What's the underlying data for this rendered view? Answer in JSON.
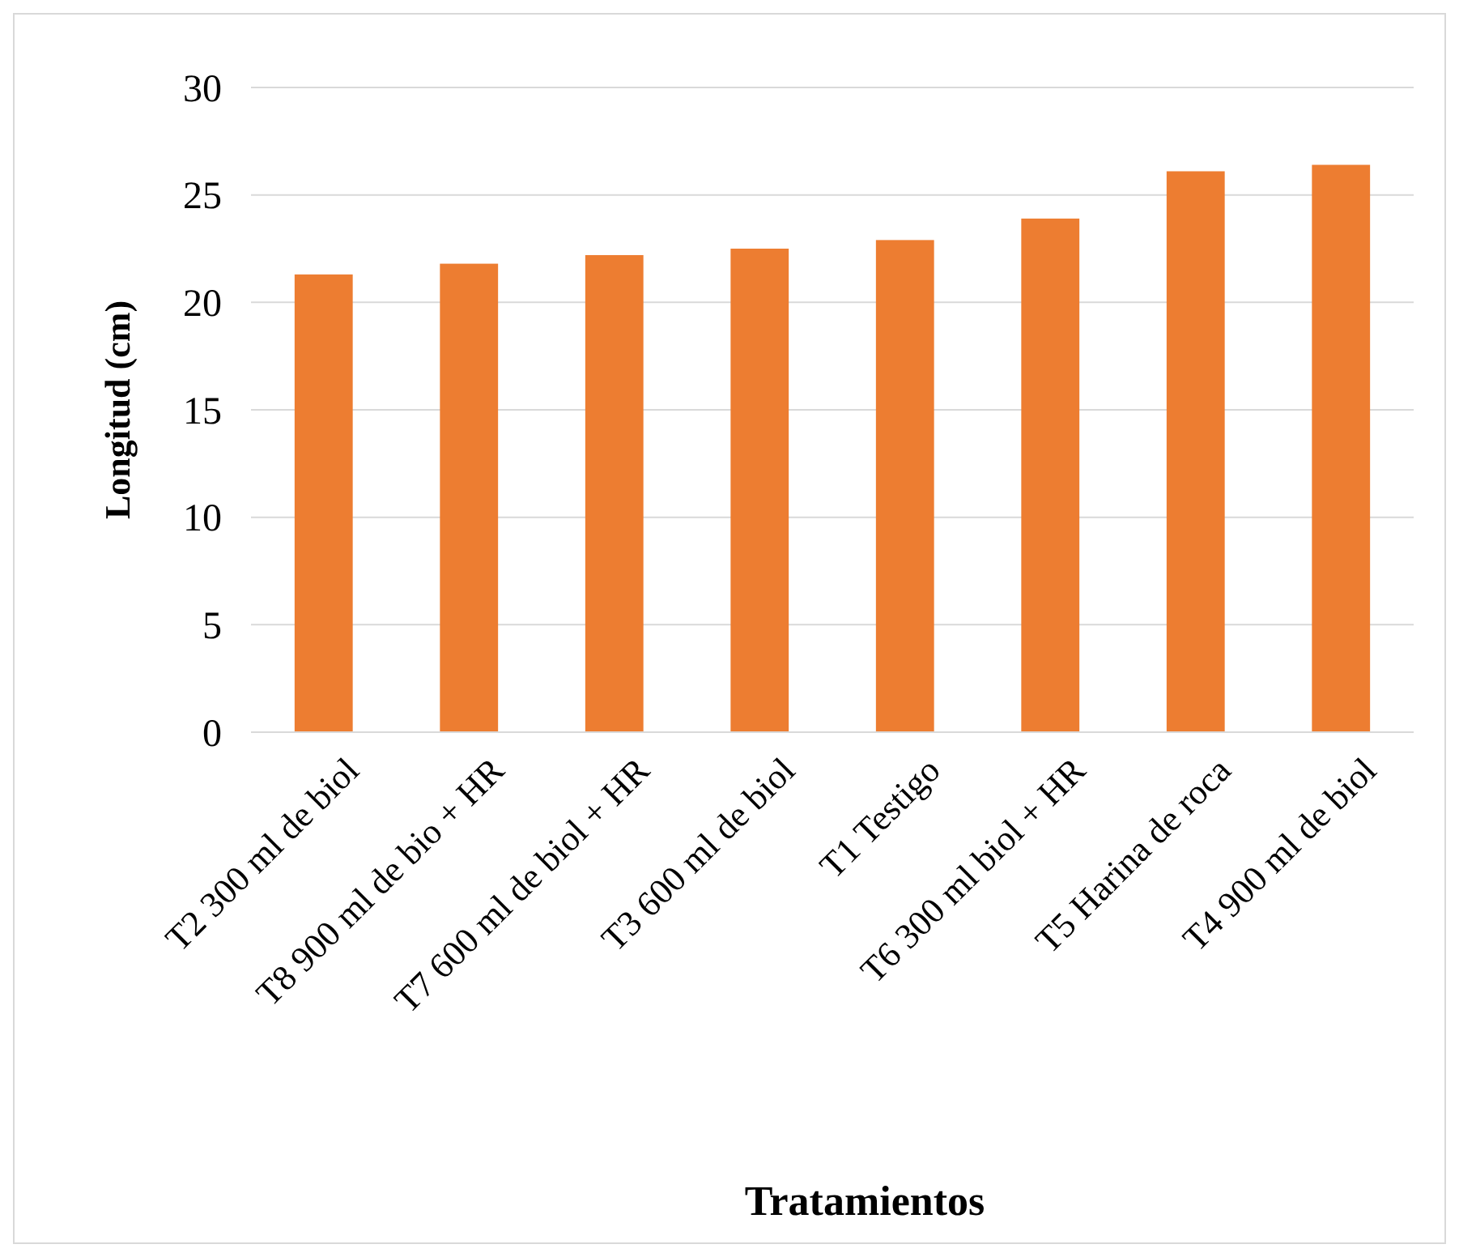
{
  "chart_data": {
    "type": "bar",
    "xlabel": "Tratamientos",
    "ylabel": "Longitud (cm)",
    "categories": [
      "T2 300 ml de biol",
      "T8 900 ml de bio + HR",
      "T7 600 ml de biol + HR",
      "T3 600 ml de biol",
      "T1 Testigo",
      "T6 300 ml biol + HR",
      "T5 Harina de roca",
      "T4 900 ml de biol"
    ],
    "values": [
      21.3,
      21.8,
      22.2,
      22.5,
      22.9,
      23.9,
      26.1,
      26.4
    ],
    "color": "#ed7d31",
    "ylim": [
      0,
      30
    ],
    "yticks": [
      0,
      5,
      10,
      15,
      20,
      25,
      30
    ],
    "grid": "y"
  }
}
